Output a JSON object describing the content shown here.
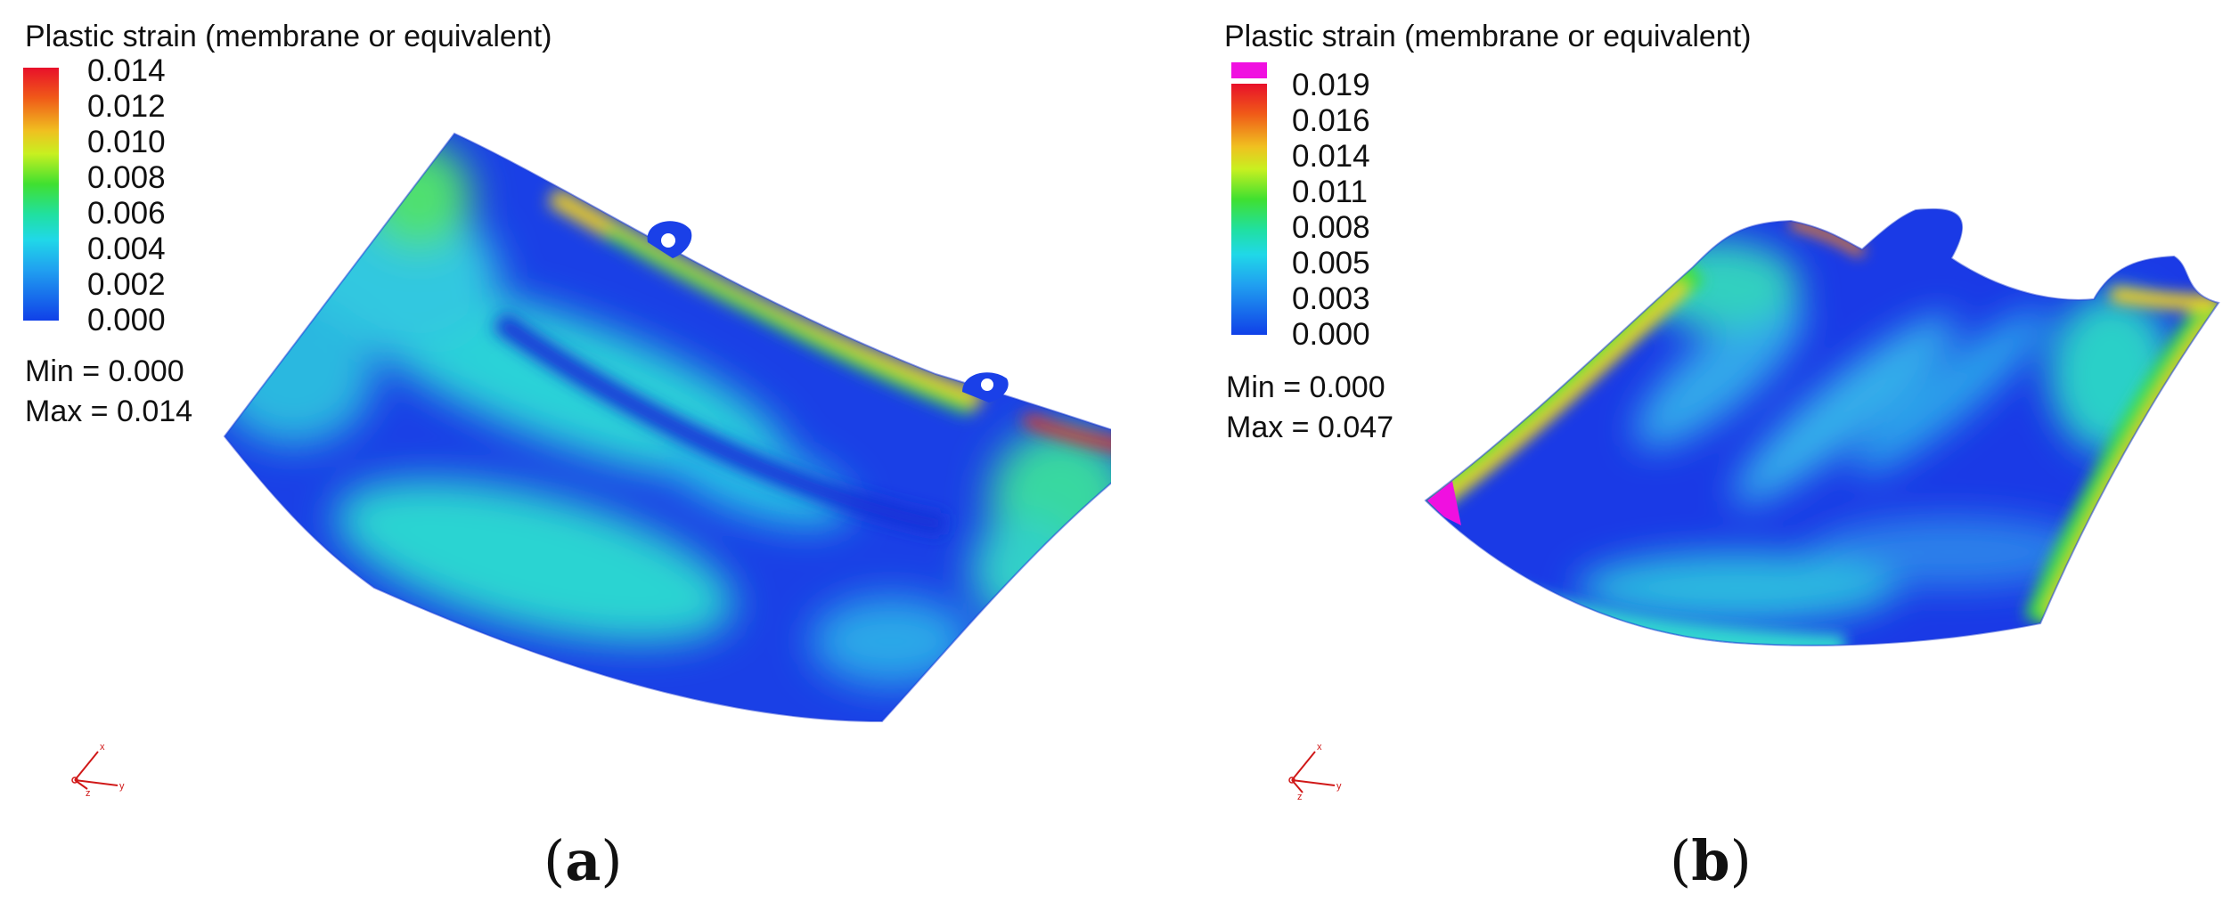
{
  "panels": [
    {
      "id": "a",
      "title": "Plastic strain (membrane or equivalent)",
      "ticks": [
        "0.014",
        "0.012",
        "0.010",
        "0.008",
        "0.006",
        "0.004",
        "0.002",
        "0.000"
      ],
      "min_label": "Min = ",
      "min_value": "0.000",
      "max_label": "Max = ",
      "max_value": "0.014",
      "caption": "a",
      "axis_labels": [
        "x",
        "y",
        "z"
      ]
    },
    {
      "id": "b",
      "title": "Plastic strain (membrane or equivalent)",
      "ticks": [
        "0.019",
        "0.016",
        "0.014",
        "0.011",
        "0.008",
        "0.005",
        "0.003",
        "0.000"
      ],
      "min_label": "Min = ",
      "min_value": "0.000",
      "max_label": "Max = ",
      "max_value": "0.047",
      "caption": "b",
      "axis_labels": [
        "x",
        "y",
        "z"
      ]
    }
  ],
  "colors": {
    "scale_high": "#e8102a",
    "scale_mid_high": "#f0e020",
    "scale_mid": "#30e030",
    "scale_mid_low": "#20e0d0",
    "scale_low": "#1030e0",
    "over_range": "#f010e0",
    "axis_triad": "#d01818"
  }
}
